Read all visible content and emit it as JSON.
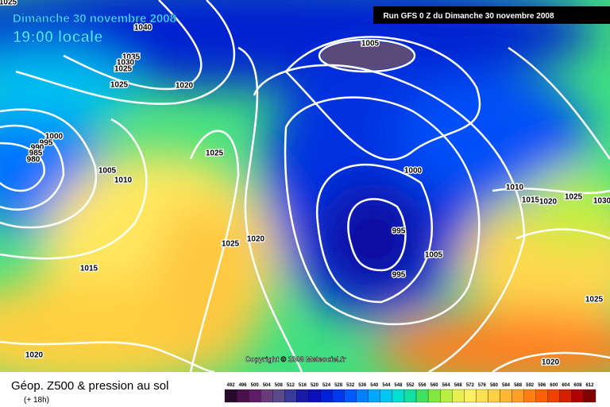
{
  "header": {
    "date": "Dimanche 30 novembre 2008",
    "time": "19:00 locale",
    "run": "Run GFS 0 Z du Dimanche 30 novembre 2008"
  },
  "copyright": "Copyright © 2008 Meteociel.fr",
  "footer": {
    "title": "Géop. Z500 & pression au sol",
    "subtitle": "(+ 18h)"
  },
  "isobar_labels": [
    1025,
    1040,
    1035,
    1030,
    1025,
    1025,
    1020,
    1005,
    1000,
    995,
    990,
    985,
    980,
    1005,
    1010,
    1025,
    1000,
    1010,
    1015,
    1020,
    1025,
    1030,
    995,
    1025,
    1020,
    1015,
    1005,
    995,
    1025,
    1020,
    1020
  ],
  "legend": {
    "values": [
      492,
      496,
      500,
      504,
      508,
      512,
      516,
      520,
      524,
      528,
      532,
      536,
      540,
      544,
      548,
      552,
      556,
      560,
      564,
      568,
      572,
      576,
      580,
      584,
      588,
      592,
      596,
      600,
      604,
      608,
      612
    ],
    "colors": [
      "#2a0a2a",
      "#4a124a",
      "#5e1c66",
      "#6a3a7a",
      "#5a4a8a",
      "#3a3a9a",
      "#1a1aa8",
      "#0a10c0",
      "#0020d8",
      "#0038f0",
      "#0058ff",
      "#0080ff",
      "#00a8ff",
      "#00c8f0",
      "#00e0d0",
      "#10e0a0",
      "#40e060",
      "#80e840",
      "#b8f040",
      "#e8f050",
      "#fff060",
      "#ffe050",
      "#ffd040",
      "#ffb830",
      "#ffa020",
      "#ff8010",
      "#ff6000",
      "#f04000",
      "#d82000",
      "#b00000",
      "#800000"
    ]
  }
}
